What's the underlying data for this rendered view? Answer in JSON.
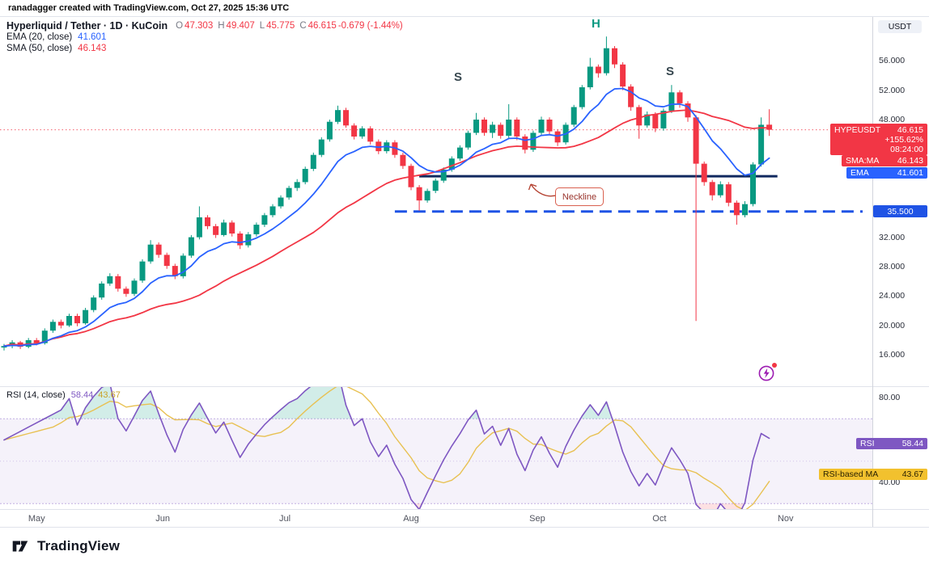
{
  "topbar": {
    "credit": "ranadagger created with TradingView.com, Oct 27, 2025 15:36 UTC"
  },
  "header": {
    "symbol_title": "Hyperliquid / Tether · 1D · KuCoin",
    "ohlc": {
      "o_label": "O",
      "o_value": "47.303",
      "h_label": "H",
      "h_value": "49.407",
      "l_label": "L",
      "l_value": "45.775",
      "c_label": "C",
      "c_value": "46.615",
      "change": "-0.679 (-1.44%)"
    },
    "ema_label": "EMA (20, close)",
    "ema_value": "41.601",
    "sma_label": "SMA (50, close)",
    "sma_value": "46.143"
  },
  "rsi_legend": {
    "label": "RSI (14, close)",
    "value": "58.44",
    "ma_value": "43.67"
  },
  "annotations": {
    "left_shoulder": "S",
    "head": "H",
    "right_shoulder": "S",
    "neckline": "Neckline"
  },
  "price_axis": {
    "unit": "USDT",
    "ticks": [
      {
        "label": "56.000",
        "value": 56
      },
      {
        "label": "52.000",
        "value": 52
      },
      {
        "label": "48.000",
        "value": 48
      },
      {
        "label": "32.000",
        "value": 32
      },
      {
        "label": "28.000",
        "value": 28
      },
      {
        "label": "24.000",
        "value": 24
      },
      {
        "label": "20.000",
        "value": 20
      },
      {
        "label": "16.000",
        "value": 16
      }
    ]
  },
  "rsi_axis": {
    "ticks": [
      {
        "label": "80.00",
        "value": 80
      },
      {
        "label": "40.00",
        "value": 40
      }
    ]
  },
  "time_axis": {
    "labels": [
      {
        "label": "May",
        "day": 8
      },
      {
        "label": "Jun",
        "day": 39
      },
      {
        "label": "Jul",
        "day": 69
      },
      {
        "label": "Aug",
        "day": 100
      },
      {
        "label": "Sep",
        "day": 131
      },
      {
        "label": "Oct",
        "day": 161
      },
      {
        "label": "Nov",
        "day": 192
      }
    ]
  },
  "badges": {
    "symbol": {
      "name": "HYPEUSDT",
      "price": "46.615",
      "change_pct": "+155.62%",
      "countdown": "08:24:00"
    },
    "sma": {
      "label": "SMA:MA",
      "value": "46.143"
    },
    "ema": {
      "label": "EMA",
      "value": "41.601"
    },
    "support": {
      "value": "35.500"
    },
    "rsi": {
      "label": "RSI",
      "value": "58.44"
    },
    "rsi_ma": {
      "label": "RSI-based MA",
      "value": "43.67"
    }
  },
  "footer": {
    "brand": "TradingView"
  },
  "colors": {
    "up": "#089981",
    "down": "#f23645",
    "ema": "#2962ff",
    "sma": "#f23645",
    "rsi": "#7e57c2",
    "rsi_ma": "#e8c152",
    "neckline": "#10295f",
    "support": "#1f53e5",
    "badge_symbol": "#f23645",
    "badge_ema": "#2962ff",
    "badge_support": "#1f53e5",
    "badge_rsi": "#7e57c2",
    "badge_rsi_ma": "#f2c12e",
    "head_label": "#089981",
    "shoulder_label": "#37474f",
    "callout": "#b3402f"
  },
  "chart_data": {
    "type": "candlestick",
    "title": "Hyperliquid / Tether",
    "interval": "1D",
    "exchange": "KuCoin",
    "quote": "USDT",
    "last": {
      "open": 47.303,
      "high": 49.407,
      "low": 45.775,
      "close": 46.615,
      "change": -0.679,
      "change_pct": -1.44
    },
    "indicators": {
      "ema20": 41.601,
      "sma50": 46.143,
      "rsi14": 58.44,
      "rsi_based_ma": 43.67
    },
    "ylim": [
      12,
      62
    ],
    "rsi_band": [
      30,
      70
    ],
    "rsi_visible_ticks": [
      80,
      40
    ],
    "candle_step_days": 2,
    "candles": [
      [
        17.0,
        17.5,
        16.6,
        17.2
      ],
      [
        17.2,
        18.0,
        16.9,
        17.7
      ],
      [
        17.7,
        17.9,
        16.8,
        17.1
      ],
      [
        17.1,
        18.3,
        16.9,
        18.0
      ],
      [
        18.0,
        18.3,
        17.3,
        17.6
      ],
      [
        17.6,
        19.6,
        17.4,
        19.3
      ],
      [
        19.3,
        20.8,
        19.0,
        20.5
      ],
      [
        20.5,
        20.8,
        19.6,
        20.0
      ],
      [
        20.0,
        21.6,
        19.8,
        21.3
      ],
      [
        21.3,
        21.6,
        19.9,
        20.3
      ],
      [
        20.3,
        22.4,
        20.1,
        22.1
      ],
      [
        22.1,
        24.1,
        21.8,
        23.8
      ],
      [
        23.8,
        26.0,
        23.5,
        25.7
      ],
      [
        25.7,
        27.1,
        25.4,
        26.7
      ],
      [
        26.7,
        27.0,
        24.6,
        25.0
      ],
      [
        25.0,
        25.3,
        23.9,
        24.3
      ],
      [
        24.3,
        26.4,
        24.0,
        26.1
      ],
      [
        26.1,
        29.0,
        25.8,
        28.7
      ],
      [
        28.7,
        31.6,
        28.4,
        31.0
      ],
      [
        31.0,
        31.3,
        29.2,
        29.6
      ],
      [
        29.6,
        29.9,
        27.7,
        28.1
      ],
      [
        28.1,
        28.4,
        26.3,
        26.7
      ],
      [
        26.7,
        29.8,
        26.4,
        29.5
      ],
      [
        29.5,
        32.3,
        29.2,
        32.0
      ],
      [
        32.0,
        36.2,
        31.7,
        34.7
      ],
      [
        34.7,
        35.0,
        33.1,
        33.5
      ],
      [
        33.5,
        33.8,
        31.9,
        32.3
      ],
      [
        32.3,
        34.4,
        32.1,
        34.0
      ],
      [
        34.0,
        34.3,
        32.1,
        32.5
      ],
      [
        32.5,
        32.8,
        30.4,
        30.9
      ],
      [
        30.9,
        32.7,
        30.6,
        32.4
      ],
      [
        32.4,
        34.0,
        32.1,
        33.7
      ],
      [
        33.7,
        35.3,
        33.4,
        35.0
      ],
      [
        35.0,
        36.5,
        34.7,
        36.2
      ],
      [
        36.2,
        37.7,
        35.9,
        37.4
      ],
      [
        37.4,
        39.0,
        37.1,
        38.7
      ],
      [
        38.7,
        39.9,
        38.3,
        39.5
      ],
      [
        39.5,
        41.6,
        39.2,
        41.3
      ],
      [
        41.3,
        43.5,
        41.0,
        43.2
      ],
      [
        43.2,
        45.6,
        42.9,
        45.3
      ],
      [
        45.3,
        48.0,
        45.0,
        47.7
      ],
      [
        47.7,
        49.9,
        47.4,
        49.3
      ],
      [
        49.3,
        49.6,
        46.9,
        47.2
      ],
      [
        47.2,
        47.5,
        45.3,
        45.7
      ],
      [
        45.7,
        47.1,
        45.4,
        46.8
      ],
      [
        46.8,
        47.1,
        44.6,
        45.0
      ],
      [
        45.0,
        45.3,
        43.3,
        43.7
      ],
      [
        43.7,
        45.2,
        43.4,
        44.9
      ],
      [
        44.9,
        45.2,
        42.8,
        43.2
      ],
      [
        43.2,
        43.5,
        41.3,
        41.7
      ],
      [
        41.7,
        42.0,
        38.4,
        38.8
      ],
      [
        38.8,
        39.1,
        35.6,
        37.0
      ],
      [
        37.0,
        38.6,
        36.7,
        38.3
      ],
      [
        38.3,
        40.0,
        38.0,
        39.7
      ],
      [
        39.7,
        41.5,
        39.4,
        41.2
      ],
      [
        41.2,
        43.0,
        40.9,
        42.7
      ],
      [
        42.7,
        44.5,
        42.4,
        44.2
      ],
      [
        44.2,
        46.5,
        43.9,
        46.2
      ],
      [
        46.2,
        48.9,
        45.9,
        48.0
      ],
      [
        48.0,
        48.3,
        45.8,
        46.2
      ],
      [
        46.2,
        47.7,
        45.5,
        47.3
      ],
      [
        47.3,
        47.6,
        45.4,
        45.8
      ],
      [
        45.8,
        50.1,
        45.5,
        48.0
      ],
      [
        48.0,
        48.3,
        45.2,
        45.7
      ],
      [
        45.7,
        46.0,
        43.4,
        43.9
      ],
      [
        43.9,
        46.5,
        43.6,
        46.2
      ],
      [
        46.2,
        48.4,
        45.9,
        48.0
      ],
      [
        48.0,
        48.3,
        46.0,
        46.4
      ],
      [
        46.4,
        46.7,
        44.4,
        44.9
      ],
      [
        44.9,
        47.6,
        44.6,
        47.3
      ],
      [
        47.3,
        50.0,
        47.0,
        49.7
      ],
      [
        49.7,
        52.7,
        49.4,
        52.4
      ],
      [
        52.4,
        56.4,
        52.1,
        55.2
      ],
      [
        55.2,
        55.5,
        53.7,
        54.3
      ],
      [
        54.3,
        59.3,
        54.0,
        57.7
      ],
      [
        57.7,
        58.0,
        55.0,
        55.5
      ],
      [
        55.5,
        55.8,
        52.0,
        52.5
      ],
      [
        52.5,
        52.8,
        49.2,
        49.7
      ],
      [
        49.7,
        50.0,
        45.4,
        47.2
      ],
      [
        47.2,
        49.1,
        46.9,
        48.7
      ],
      [
        48.7,
        49.0,
        46.3,
        46.8
      ],
      [
        46.8,
        49.5,
        46.5,
        49.2
      ],
      [
        49.2,
        52.7,
        48.9,
        51.7
      ],
      [
        51.7,
        52.0,
        49.6,
        50.2
      ],
      [
        50.2,
        50.5,
        47.7,
        48.3
      ],
      [
        48.3,
        48.6,
        20.6,
        42.0
      ],
      [
        42.0,
        42.3,
        39.0,
        39.5
      ],
      [
        39.5,
        39.8,
        37.0,
        37.7
      ],
      [
        37.7,
        39.6,
        37.4,
        39.2
      ],
      [
        39.2,
        39.5,
        36.2,
        36.7
      ],
      [
        36.7,
        37.0,
        33.7,
        35.0
      ],
      [
        35.0,
        36.9,
        34.7,
        36.5
      ],
      [
        36.5,
        42.2,
        36.2,
        41.9
      ],
      [
        41.9,
        48.3,
        41.6,
        47.3
      ],
      [
        47.303,
        49.407,
        45.775,
        46.615
      ]
    ],
    "neckline": {
      "price": 40.3,
      "from_day": 102,
      "to_day": 190
    },
    "support_line": {
      "price": 35.5,
      "from_day": 96,
      "label": "35.500",
      "style": "dashed"
    },
    "last_price_line": 46.615
  }
}
